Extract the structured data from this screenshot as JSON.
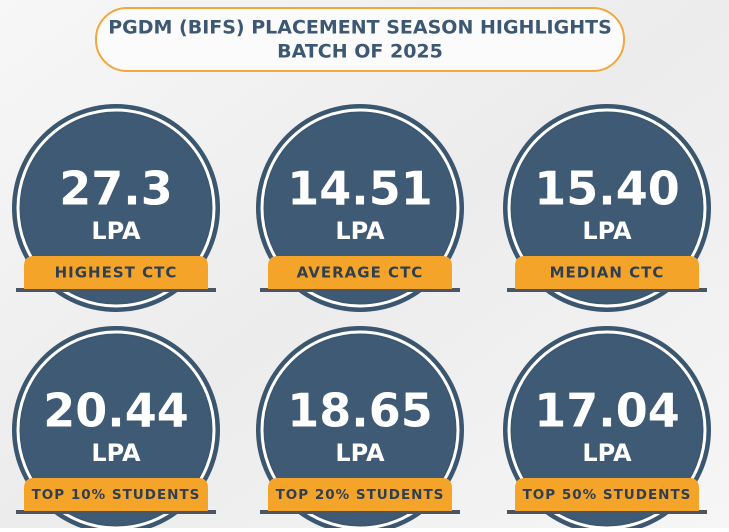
{
  "header": {
    "title_line1": "PGDM (BIFS) PLACEMENT SEASON HIGHLIGHTS",
    "title_line2": "BATCH OF 2025"
  },
  "stats": [
    {
      "value": "27.3",
      "unit": "LPA",
      "label": "HIGHEST CTC"
    },
    {
      "value": "14.51",
      "unit": "LPA",
      "label": "AVERAGE CTC"
    },
    {
      "value": "15.40",
      "unit": "LPA",
      "label": "MEDIAN CTC"
    },
    {
      "value": "20.44",
      "unit": "LPA",
      "label": "TOP 10% STUDENTS"
    },
    {
      "value": "18.65",
      "unit": "LPA",
      "label": "TOP 20% STUDENTS"
    },
    {
      "value": "17.04",
      "unit": "LPA",
      "label": "TOP 50% STUDENTS"
    }
  ]
}
